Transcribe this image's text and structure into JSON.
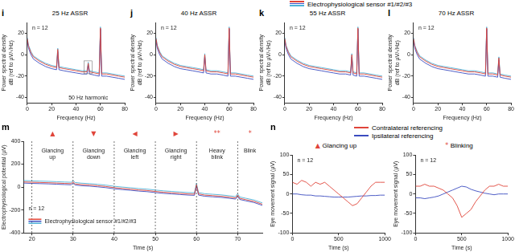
{
  "chart_data": [
    {
      "type": "line",
      "panel": "i",
      "title": "25 Hz ASSR",
      "x_label": "Frequency (Hz)",
      "y_label": [
        "Power spectral density",
        "dB (ref to µV/√Hz)"
      ],
      "legend_label": "Electrophysiological sensor #1/#2/#3",
      "note": "n = 12",
      "peak_note": {
        "text": "50 Hz harmonic",
        "x": 50,
        "y": -8
      },
      "xlim": [
        0,
        80
      ],
      "xticks": [
        0,
        20,
        40,
        60,
        80
      ],
      "ylim": [
        -45,
        30
      ],
      "yticks": [
        -40,
        -20,
        0,
        20
      ],
      "grid": false,
      "x": [
        0,
        1,
        3,
        5,
        10,
        15,
        20,
        24,
        25,
        26,
        30,
        35,
        40,
        45,
        49,
        50,
        51,
        55,
        59,
        60,
        61,
        65,
        70,
        75,
        80
      ],
      "series": [
        {
          "color": "#e0453a",
          "values": [
            15,
            8,
            2,
            -2,
            -6,
            -9,
            -11,
            -12,
            5,
            -12,
            -13,
            -14,
            -15,
            -16,
            -16,
            -8,
            -16,
            -17,
            -18,
            25,
            -18,
            -18,
            -19,
            -20,
            -21
          ]
        },
        {
          "color": "#3b4cc0",
          "values": [
            13,
            6,
            0,
            -4,
            -8,
            -11,
            -13,
            -14,
            3,
            -14,
            -15,
            -16,
            -17,
            -18,
            -18,
            -10,
            -18,
            -19,
            -20,
            24,
            -20,
            -20,
            -21,
            -22,
            -23
          ]
        },
        {
          "color": "#4fb3d9",
          "values": [
            16,
            9,
            3,
            -1,
            -5,
            -8,
            -10,
            -11,
            6,
            -11,
            -12,
            -13,
            -14,
            -15,
            -15,
            -7,
            -15,
            -16,
            -17,
            26,
            -17,
            -17,
            -18,
            -19,
            -20
          ]
        }
      ]
    },
    {
      "type": "line",
      "panel": "j",
      "title": "40 Hz ASSR",
      "x_label": "Frequency (Hz)",
      "y_label": [
        "Power spectral density",
        "dB (ref to µV/√Hz)"
      ],
      "note": "n = 12",
      "xlim": [
        0,
        80
      ],
      "xticks": [
        0,
        20,
        40,
        60,
        80
      ],
      "ylim": [
        -45,
        30
      ],
      "yticks": [
        -40,
        -20,
        0,
        20
      ],
      "grid": false,
      "x": [
        0,
        1,
        3,
        5,
        10,
        15,
        20,
        25,
        30,
        35,
        39,
        40,
        41,
        45,
        50,
        55,
        59,
        60,
        61,
        65,
        70,
        75,
        80
      ],
      "series": [
        {
          "color": "#e0453a",
          "values": [
            15,
            8,
            2,
            -2,
            -6,
            -9,
            -11,
            -12,
            -13,
            -14,
            -15,
            0,
            -15,
            -16,
            -16,
            -17,
            -18,
            25,
            -18,
            -18,
            -19,
            -20,
            -21
          ]
        },
        {
          "color": "#3b4cc0",
          "values": [
            13,
            6,
            0,
            -4,
            -8,
            -11,
            -13,
            -14,
            -15,
            -16,
            -17,
            -2,
            -17,
            -18,
            -18,
            -19,
            -20,
            24,
            -20,
            -20,
            -21,
            -22,
            -23
          ]
        },
        {
          "color": "#4fb3d9",
          "values": [
            16,
            9,
            3,
            -1,
            -5,
            -8,
            -10,
            -11,
            -12,
            -13,
            -14,
            1,
            -14,
            -15,
            -15,
            -16,
            -17,
            26,
            -17,
            -17,
            -18,
            -19,
            -20
          ]
        }
      ]
    },
    {
      "type": "line",
      "panel": "k",
      "title": "55 Hz ASSR",
      "x_label": "Frequency (Hz)",
      "y_label": [
        "Power spectral density",
        "dB (ref to µV/√Hz)"
      ],
      "note": "n = 12",
      "xlim": [
        0,
        80
      ],
      "xticks": [
        0,
        20,
        40,
        60,
        80
      ],
      "ylim": [
        -45,
        30
      ],
      "yticks": [
        -40,
        -20,
        0,
        20
      ],
      "grid": false,
      "x": [
        0,
        1,
        3,
        5,
        10,
        15,
        20,
        25,
        30,
        35,
        40,
        45,
        50,
        54,
        55,
        56,
        59,
        60,
        61,
        65,
        70,
        75,
        80
      ],
      "series": [
        {
          "color": "#e0453a",
          "values": [
            15,
            8,
            2,
            -2,
            -6,
            -9,
            -11,
            -12,
            -13,
            -14,
            -15,
            -16,
            -16,
            -17,
            0,
            -17,
            -18,
            25,
            -18,
            -18,
            -19,
            -20,
            -21
          ]
        },
        {
          "color": "#3b4cc0",
          "values": [
            13,
            6,
            0,
            -4,
            -8,
            -11,
            -13,
            -14,
            -15,
            -16,
            -17,
            -18,
            -18,
            -19,
            -2,
            -19,
            -20,
            24,
            -20,
            -20,
            -21,
            -22,
            -23
          ]
        },
        {
          "color": "#4fb3d9",
          "values": [
            16,
            9,
            3,
            -1,
            -5,
            -8,
            -10,
            -11,
            -12,
            -13,
            -14,
            -15,
            -15,
            -16,
            1,
            -16,
            -17,
            26,
            -17,
            -17,
            -18,
            -19,
            -20
          ]
        }
      ]
    },
    {
      "type": "line",
      "panel": "l",
      "title": "70 Hz ASSR",
      "x_label": "Frequency (Hz)",
      "y_label": [
        "Power spectral density",
        "dB (ref to µV/√Hz)"
      ],
      "note": "n = 12",
      "xlim": [
        0,
        80
      ],
      "xticks": [
        0,
        20,
        40,
        60,
        80
      ],
      "ylim": [
        -45,
        30
      ],
      "yticks": [
        -40,
        -20,
        0,
        20
      ],
      "grid": false,
      "x": [
        0,
        1,
        3,
        5,
        10,
        15,
        20,
        25,
        30,
        35,
        40,
        45,
        50,
        55,
        59,
        60,
        61,
        65,
        69,
        70,
        71,
        75,
        80
      ],
      "series": [
        {
          "color": "#e0453a",
          "values": [
            15,
            8,
            2,
            -2,
            -6,
            -9,
            -11,
            -12,
            -13,
            -14,
            -15,
            -16,
            -16,
            -17,
            -18,
            25,
            -18,
            -18,
            -19,
            -3,
            -19,
            -20,
            -21
          ]
        },
        {
          "color": "#3b4cc0",
          "values": [
            13,
            6,
            0,
            -4,
            -8,
            -11,
            -13,
            -14,
            -15,
            -16,
            -17,
            -18,
            -18,
            -19,
            -20,
            24,
            -20,
            -20,
            -21,
            -5,
            -21,
            -22,
            -23
          ]
        },
        {
          "color": "#4fb3d9",
          "values": [
            16,
            9,
            3,
            -1,
            -5,
            -8,
            -10,
            -11,
            -12,
            -13,
            -14,
            -15,
            -15,
            -16,
            -17,
            26,
            -17,
            -17,
            -18,
            -2,
            -18,
            -19,
            -20
          ]
        }
      ]
    },
    {
      "type": "line",
      "panel": "m",
      "x_label": "Time (s)",
      "y_label": "Electrophysiological potential (µV)",
      "legend_label": "Electrophysiological sensor #1/#2/#3",
      "note": "n = 12",
      "xlim": [
        18,
        76
      ],
      "xticks": [
        20,
        30,
        40,
        50,
        60,
        70
      ],
      "ylim": [
        -400,
        400
      ],
      "yticks": [
        -400,
        -200,
        0,
        200,
        400
      ],
      "grid": false,
      "segments": [
        {
          "start": 20,
          "end": 30,
          "label": "Glancing up",
          "symbol": "▲"
        },
        {
          "start": 30,
          "end": 40,
          "label": "Glancing down",
          "symbol": "▼"
        },
        {
          "start": 40,
          "end": 50,
          "label": "Glancing left",
          "symbol": "◀"
        },
        {
          "start": 50,
          "end": 60,
          "label": "Glancing right",
          "symbol": "▶"
        },
        {
          "start": 60,
          "end": 70,
          "label": "Heavy blink",
          "symbol": "**"
        },
        {
          "start": 70,
          "end": 76,
          "label": "Blink",
          "symbol": "*"
        }
      ],
      "x": [
        18,
        20,
        22,
        24,
        26,
        28,
        29.5,
        30,
        30.5,
        32,
        34,
        36,
        38,
        40,
        42,
        44,
        46,
        48,
        50,
        52,
        54,
        56,
        58,
        59.5,
        60,
        60.5,
        62,
        64,
        66,
        68,
        69.5,
        70,
        70.5,
        72,
        74,
        76
      ],
      "series": [
        {
          "color": "#e0453a",
          "values": [
            45,
            42,
            40,
            38,
            35,
            32,
            30,
            45,
            28,
            22,
            18,
            12,
            5,
            -5,
            -12,
            -18,
            -25,
            -30,
            -38,
            -45,
            -50,
            -55,
            -60,
            -62,
            20,
            -60,
            -70,
            -75,
            -80,
            -88,
            -95,
            -70,
            -98,
            -110,
            -125,
            -150
          ]
        },
        {
          "color": "#3b4cc0",
          "values": [
            35,
            32,
            30,
            28,
            25,
            22,
            20,
            35,
            18,
            12,
            8,
            2,
            -5,
            -15,
            -22,
            -28,
            -35,
            -40,
            -48,
            -55,
            -60,
            -65,
            -70,
            -72,
            10,
            -70,
            -80,
            -85,
            -90,
            -98,
            -105,
            -80,
            -108,
            -120,
            -135,
            -160
          ]
        },
        {
          "color": "#4fb3d9",
          "values": [
            57,
            54,
            52,
            50,
            47,
            44,
            42,
            57,
            40,
            34,
            30,
            24,
            17,
            7,
            0,
            -6,
            -13,
            -18,
            -26,
            -33,
            -38,
            -43,
            -48,
            -50,
            32,
            -48,
            -58,
            -63,
            -68,
            -76,
            -83,
            -58,
            -86,
            -98,
            -113,
            -138
          ]
        }
      ]
    },
    {
      "type": "line",
      "panel": "n",
      "title": "Glancing up",
      "title_symbol": "▲",
      "x_label": "Time (s)",
      "y_label": "Eye movement signal (µV)",
      "note": "n = 12",
      "xlim": [
        0,
        1000
      ],
      "xticks": [
        0,
        500,
        1000
      ],
      "ylim": [
        -100,
        100
      ],
      "yticks": [
        -100,
        -50,
        0,
        50,
        100
      ],
      "grid": false,
      "x": [
        0,
        50,
        100,
        150,
        200,
        250,
        300,
        350,
        400,
        450,
        500,
        550,
        600,
        650,
        700,
        750,
        800,
        850,
        900,
        950,
        1000
      ],
      "series": [
        {
          "name": "Contralateral referencing",
          "color": "#e0453a",
          "values": [
            30,
            25,
            35,
            30,
            20,
            30,
            25,
            30,
            20,
            10,
            0,
            -10,
            -20,
            -30,
            -25,
            -10,
            5,
            20,
            30,
            30,
            30
          ]
        },
        {
          "name": "Ipsilateral referencing",
          "color": "#3b4cc0",
          "values": [
            0,
            0,
            -2,
            -3,
            -3,
            -5,
            -5,
            -6,
            -7,
            -8,
            -8,
            -8,
            -8,
            -7,
            -6,
            -5,
            -5,
            -4,
            -4,
            -3,
            -3
          ]
        }
      ]
    },
    {
      "type": "line",
      "title": "Blinking",
      "title_symbol": "*",
      "x_label": "Time (s)",
      "y_label": "Eye movement signal (µV)",
      "note": "n = 12",
      "xlim": [
        0,
        1000
      ],
      "xticks": [
        0,
        500,
        1000
      ],
      "ylim": [
        -100,
        100
      ],
      "yticks": [
        -100,
        -50,
        0,
        50,
        100
      ],
      "grid": false,
      "x": [
        0,
        50,
        100,
        150,
        200,
        250,
        300,
        350,
        400,
        450,
        500,
        550,
        600,
        650,
        700,
        750,
        800,
        850,
        900,
        950,
        1000
      ],
      "series": [
        {
          "name": "Contralateral referencing",
          "color": "#e0453a",
          "values": [
            20,
            20,
            25,
            20,
            20,
            15,
            10,
            0,
            -10,
            -30,
            -60,
            -50,
            -40,
            -20,
            -5,
            10,
            20,
            20,
            25,
            20,
            20
          ]
        },
        {
          "name": "Ipsilateral referencing",
          "color": "#3b4cc0",
          "values": [
            -10,
            -10,
            -12,
            -10,
            -8,
            -5,
            0,
            5,
            10,
            15,
            20,
            18,
            12,
            8,
            5,
            2,
            0,
            -2,
            0,
            0,
            0
          ]
        }
      ]
    }
  ]
}
